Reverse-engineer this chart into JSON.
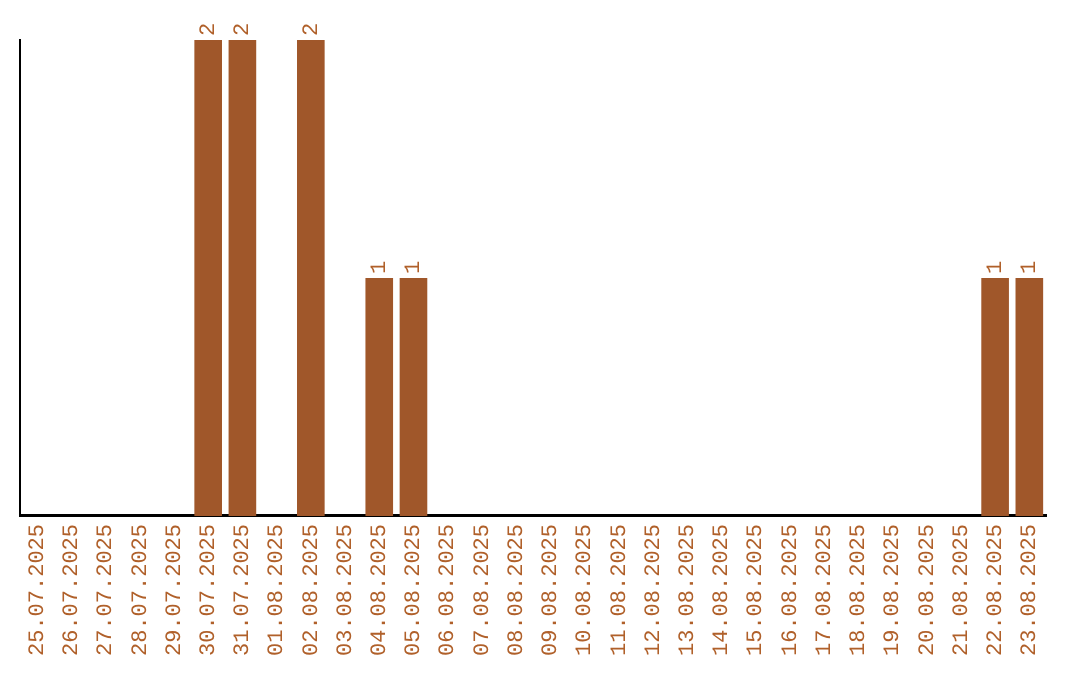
{
  "chart_data": {
    "type": "bar",
    "categories": [
      "25.07.2025",
      "26.07.2025",
      "27.07.2025",
      "28.07.2025",
      "29.07.2025",
      "30.07.2025",
      "31.07.2025",
      "01.08.2025",
      "02.08.2025",
      "03.08.2025",
      "04.08.2025",
      "05.08.2025",
      "06.08.2025",
      "07.08.2025",
      "08.08.2025",
      "09.08.2025",
      "10.08.2025",
      "11.08.2025",
      "12.08.2025",
      "13.08.2025",
      "14.08.2025",
      "15.08.2025",
      "16.08.2025",
      "17.08.2025",
      "18.08.2025",
      "19.08.2025",
      "20.08.2025",
      "21.08.2025",
      "22.08.2025",
      "23.08.2025"
    ],
    "values": [
      0,
      0,
      0,
      0,
      0,
      2,
      2,
      0,
      2,
      0,
      1,
      1,
      0,
      0,
      0,
      0,
      0,
      0,
      0,
      0,
      0,
      0,
      0,
      0,
      0,
      0,
      0,
      0,
      1,
      1
    ],
    "value_labels": [
      null,
      null,
      null,
      null,
      null,
      "2",
      "2",
      null,
      "2",
      null,
      "1",
      "1",
      null,
      null,
      null,
      null,
      null,
      null,
      null,
      null,
      null,
      null,
      null,
      null,
      null,
      null,
      null,
      null,
      "1",
      "1"
    ],
    "color": "#a0572a",
    "tick_labels": "x",
    "grid": false,
    "legend": false
  }
}
